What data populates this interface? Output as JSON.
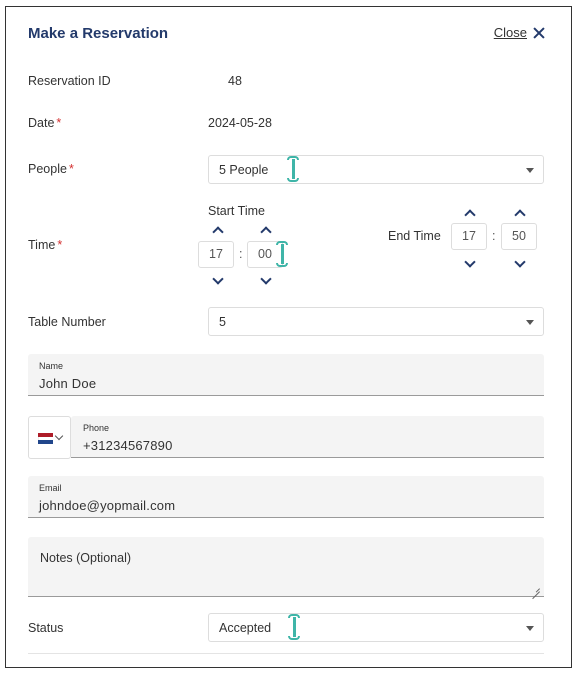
{
  "modal": {
    "title": "Make a Reservation",
    "close_label": "Close"
  },
  "reservation_id": {
    "label": "Reservation ID",
    "value": "48"
  },
  "date": {
    "label": "Date",
    "required_mark": "*",
    "value": "2024-05-28"
  },
  "people": {
    "label": "People",
    "required_mark": "*",
    "value": "5 People"
  },
  "time": {
    "label": "Time",
    "required_mark": "*",
    "start_label": "Start Time",
    "start_hour": "17",
    "start_minute": "00",
    "end_label": "End Time",
    "end_hour": "17",
    "end_minute": "50",
    "separator": ":"
  },
  "table_number": {
    "label": "Table Number",
    "value": "5"
  },
  "name": {
    "label": "Name",
    "value": "John Doe"
  },
  "phone": {
    "label": "Phone",
    "value": "+31234567890",
    "flag_colors": [
      "#ae1c28",
      "#ffffff",
      "#21468b"
    ]
  },
  "email": {
    "label": "Email",
    "value": "johndoe@yopmail.com"
  },
  "notes": {
    "label": "Notes (Optional)"
  },
  "status": {
    "label": "Status",
    "value": "Accepted"
  }
}
